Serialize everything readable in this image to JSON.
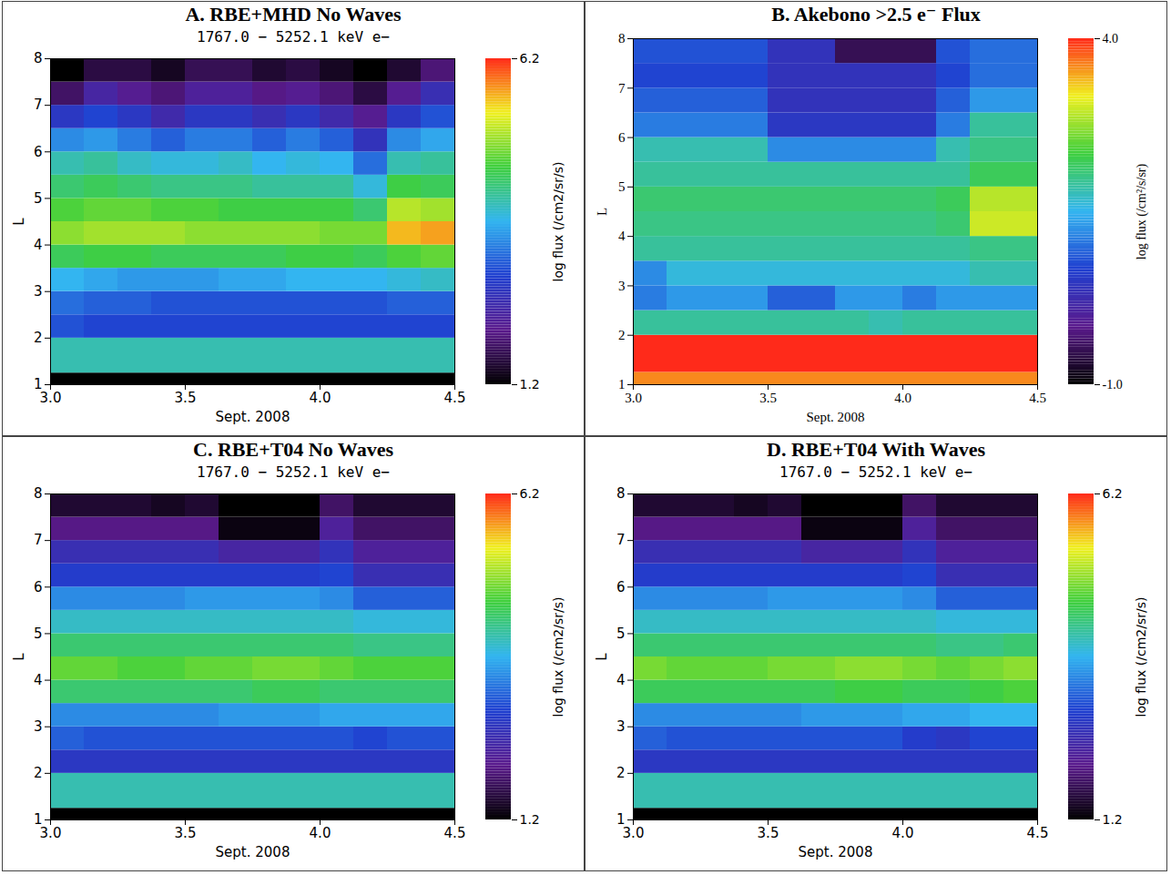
{
  "chart_data": [
    {
      "type": "heatmap",
      "title": "A. RBE+MHD No Waves",
      "subtitle": "1767.0 − 5252.1 keV e−",
      "xlabel": "Sept. 2008",
      "ylabel": "L",
      "xlim": [
        3.0,
        4.5
      ],
      "xticks": [
        {
          "value": 3.0,
          "label": "3.0"
        },
        {
          "value": 3.5,
          "label": "3.5"
        },
        {
          "value": 4.0,
          "label": "4.0"
        },
        {
          "value": 4.5,
          "label": "4.5"
        }
      ],
      "ylim": [
        1,
        8
      ],
      "yticks": [
        1,
        2,
        3,
        4,
        5,
        6,
        7,
        8
      ],
      "x_bins": [
        3.0,
        3.125,
        3.25,
        3.375,
        3.5,
        3.625,
        3.75,
        3.875,
        4.0,
        4.125,
        4.25,
        4.375,
        4.5
      ],
      "y_bins": [
        1,
        1.25,
        2,
        2.5,
        3,
        3.5,
        4,
        4.5,
        5,
        5.5,
        6,
        6.5,
        7,
        7.5,
        8
      ],
      "values": [
        [
          1.2,
          1.2,
          1.2,
          1.2,
          1.2,
          1.2,
          1.2,
          1.2,
          1.2,
          1.2,
          1.2,
          1.2
        ],
        [
          4.0,
          4.0,
          4.0,
          4.0,
          4.0,
          4.0,
          4.0,
          4.0,
          4.0,
          4.0,
          4.0,
          4.0
        ],
        [
          3.0,
          2.9,
          2.9,
          2.9,
          2.9,
          2.9,
          2.9,
          2.9,
          2.9,
          2.9,
          2.9,
          2.9
        ],
        [
          3.2,
          3.1,
          3.1,
          3.0,
          3.0,
          3.0,
          3.0,
          3.0,
          3.0,
          3.0,
          3.1,
          3.1
        ],
        [
          3.7,
          3.6,
          3.5,
          3.5,
          3.5,
          3.6,
          3.6,
          3.7,
          3.7,
          3.7,
          3.8,
          3.9
        ],
        [
          4.4,
          4.5,
          4.5,
          4.4,
          4.4,
          4.4,
          4.4,
          4.5,
          4.5,
          4.4,
          4.6,
          4.7
        ],
        [
          4.9,
          5.0,
          5.0,
          5.0,
          4.9,
          4.9,
          4.9,
          4.9,
          4.8,
          4.8,
          5.6,
          5.7
        ],
        [
          4.6,
          4.7,
          4.7,
          4.6,
          4.6,
          4.5,
          4.5,
          4.5,
          4.5,
          4.3,
          5.1,
          5.0
        ],
        [
          4.3,
          4.4,
          4.3,
          4.2,
          4.2,
          4.2,
          4.1,
          4.1,
          4.1,
          3.8,
          4.5,
          4.4
        ],
        [
          4.0,
          4.1,
          3.9,
          3.8,
          3.8,
          3.9,
          3.7,
          3.8,
          3.7,
          3.2,
          4.0,
          4.1
        ],
        [
          3.4,
          3.5,
          3.3,
          3.1,
          3.3,
          3.3,
          3.1,
          3.3,
          3.1,
          2.6,
          3.4,
          3.6
        ],
        [
          2.7,
          2.9,
          2.7,
          2.4,
          2.7,
          2.7,
          2.5,
          2.7,
          2.4,
          2.1,
          2.7,
          3.0
        ],
        [
          1.8,
          2.3,
          2.1,
          1.9,
          2.2,
          2.2,
          2.0,
          2.1,
          1.9,
          1.6,
          2.1,
          2.5
        ],
        [
          1.2,
          1.6,
          1.6,
          1.4,
          1.7,
          1.7,
          1.5,
          1.6,
          1.4,
          1.2,
          1.5,
          1.9
        ]
      ],
      "colorbar_label": "log flux (/cm2/sr/s)",
      "colorbar_lim": [
        1.2,
        6.2
      ],
      "colorbar_ticks": [
        1.2,
        6.2
      ]
    },
    {
      "type": "heatmap",
      "title": "B. Akebono >2.5 e⁻ Flux",
      "xlabel": "Sept. 2008",
      "ylabel": "L",
      "xlim": [
        3.0,
        4.5
      ],
      "xticks": [
        {
          "value": 3.0,
          "label": "3.0"
        },
        {
          "value": 3.5,
          "label": "3.5"
        },
        {
          "value": 4.0,
          "label": "4.0"
        },
        {
          "value": 4.5,
          "label": "4.5"
        }
      ],
      "ylim": [
        1,
        8
      ],
      "yticks": [
        1,
        2,
        3,
        4,
        5,
        6,
        7,
        8
      ],
      "x_bins": [
        3.0,
        3.125,
        3.25,
        3.375,
        3.5,
        3.625,
        3.75,
        3.875,
        4.0,
        4.125,
        4.25,
        4.375,
        4.5
      ],
      "y_bins": [
        1,
        1.25,
        2,
        2.5,
        3,
        3.5,
        4,
        4.5,
        5,
        5.5,
        6,
        6.5,
        7,
        7.5,
        8
      ],
      "values": [
        [
          3.6,
          3.6,
          3.6,
          3.6,
          3.6,
          3.6,
          3.6,
          3.6,
          3.6,
          3.6,
          3.6,
          3.6
        ],
        [
          4.0,
          4.0,
          4.0,
          4.0,
          4.0,
          4.0,
          4.0,
          4.0,
          4.0,
          4.0,
          4.0,
          4.0
        ],
        [
          1.9,
          1.9,
          1.9,
          1.9,
          1.9,
          1.9,
          1.9,
          1.8,
          1.9,
          1.9,
          1.9,
          1.9
        ],
        [
          1.1,
          1.3,
          1.3,
          1.3,
          0.9,
          0.9,
          1.3,
          1.3,
          1.1,
          1.3,
          1.3,
          1.3
        ],
        [
          1.2,
          1.6,
          1.6,
          1.6,
          1.6,
          1.6,
          1.6,
          1.6,
          1.6,
          1.6,
          1.8,
          1.8
        ],
        [
          1.9,
          1.9,
          1.9,
          1.9,
          1.9,
          1.9,
          1.9,
          1.9,
          1.9,
          1.9,
          2.0,
          2.0
        ],
        [
          2.0,
          2.0,
          2.0,
          2.0,
          2.0,
          2.0,
          2.0,
          2.0,
          2.0,
          2.1,
          3.0,
          3.0
        ],
        [
          2.1,
          2.1,
          2.1,
          2.1,
          2.1,
          2.1,
          2.1,
          2.1,
          2.1,
          2.2,
          2.9,
          2.9
        ],
        [
          1.9,
          1.9,
          1.9,
          1.9,
          1.9,
          1.9,
          1.9,
          1.9,
          1.9,
          1.9,
          2.2,
          2.2
        ],
        [
          1.8,
          1.8,
          1.8,
          1.8,
          1.2,
          1.2,
          1.2,
          1.2,
          1.2,
          1.8,
          2.0,
          2.0
        ],
        [
          1.1,
          1.1,
          1.1,
          1.1,
          0.5,
          0.5,
          0.5,
          0.5,
          0.5,
          1.1,
          1.9,
          1.9
        ],
        [
          0.9,
          0.9,
          0.9,
          0.9,
          0.4,
          0.4,
          0.4,
          0.4,
          0.4,
          0.9,
          1.3,
          1.3
        ],
        [
          0.7,
          0.7,
          0.7,
          0.7,
          0.4,
          0.4,
          0.4,
          0.4,
          0.4,
          0.7,
          1.0,
          1.0
        ],
        [
          0.8,
          0.8,
          0.8,
          0.8,
          0.4,
          0.4,
          -0.5,
          -0.5,
          -0.5,
          0.8,
          1.0,
          1.0
        ]
      ],
      "colorbar_label": "log flux (/cm²/s/sr)",
      "colorbar_lim": [
        -1.0,
        4.0
      ],
      "colorbar_ticks": [
        {
          "value": -1.0,
          "label": "-1.0"
        },
        {
          "value": 4.0,
          "label": "4.0"
        }
      ]
    },
    {
      "type": "heatmap",
      "title": "C. RBE+T04 No Waves",
      "subtitle": "1767.0 − 5252.1 keV e−",
      "xlabel": "Sept. 2008",
      "ylabel": "L",
      "xlim": [
        3.0,
        4.5
      ],
      "xticks": [
        {
          "value": 3.0,
          "label": "3.0"
        },
        {
          "value": 3.5,
          "label": "3.5"
        },
        {
          "value": 4.0,
          "label": "4.0"
        },
        {
          "value": 4.5,
          "label": "4.5"
        }
      ],
      "ylim": [
        1,
        8
      ],
      "yticks": [
        1,
        2,
        3,
        4,
        5,
        6,
        7,
        8
      ],
      "x_bins": [
        3.0,
        3.125,
        3.25,
        3.375,
        3.5,
        3.625,
        3.75,
        3.875,
        4.0,
        4.125,
        4.25,
        4.375,
        4.5
      ],
      "y_bins": [
        1,
        1.25,
        2,
        2.5,
        3,
        3.5,
        4,
        4.5,
        5,
        5.5,
        6,
        6.5,
        7,
        7.5,
        8
      ],
      "values": [
        [
          1.2,
          1.2,
          1.2,
          1.2,
          1.2,
          1.2,
          1.2,
          1.2,
          1.2,
          1.2,
          1.2,
          1.2
        ],
        [
          4.0,
          4.0,
          4.0,
          4.0,
          4.0,
          4.0,
          4.0,
          4.0,
          4.0,
          4.0,
          4.0,
          4.0
        ],
        [
          2.7,
          2.7,
          2.7,
          2.7,
          2.7,
          2.7,
          2.7,
          2.7,
          2.7,
          2.7,
          2.7,
          2.7
        ],
        [
          3.1,
          3.0,
          3.0,
          3.0,
          3.0,
          3.0,
          3.0,
          3.0,
          3.0,
          2.9,
          3.0,
          3.0
        ],
        [
          3.4,
          3.4,
          3.4,
          3.4,
          3.4,
          3.5,
          3.5,
          3.5,
          3.6,
          3.6,
          3.6,
          3.6
        ],
        [
          4.3,
          4.3,
          4.3,
          4.3,
          4.3,
          4.3,
          4.4,
          4.4,
          4.3,
          4.3,
          4.3,
          4.3
        ],
        [
          4.7,
          4.7,
          4.6,
          4.6,
          4.7,
          4.7,
          4.8,
          4.8,
          4.7,
          4.6,
          4.6,
          4.6
        ],
        [
          4.3,
          4.3,
          4.3,
          4.3,
          4.3,
          4.3,
          4.3,
          4.3,
          4.3,
          4.2,
          4.2,
          4.2
        ],
        [
          3.9,
          3.9,
          3.9,
          3.9,
          3.9,
          3.9,
          3.9,
          3.9,
          3.9,
          3.8,
          3.8,
          3.8
        ],
        [
          3.4,
          3.4,
          3.4,
          3.4,
          3.5,
          3.5,
          3.5,
          3.5,
          3.4,
          3.1,
          3.1,
          3.1
        ],
        [
          2.8,
          2.8,
          2.8,
          2.8,
          2.8,
          2.8,
          2.8,
          2.8,
          2.9,
          2.5,
          2.5,
          2.5
        ],
        [
          2.5,
          2.5,
          2.5,
          2.5,
          2.5,
          2.3,
          2.3,
          2.3,
          2.6,
          2.2,
          2.2,
          2.2
        ],
        [
          2.0,
          2.0,
          2.0,
          2.0,
          2.0,
          1.3,
          1.3,
          1.3,
          2.2,
          1.8,
          1.8,
          1.8
        ],
        [
          1.5,
          1.5,
          1.5,
          1.4,
          1.5,
          1.2,
          1.2,
          1.2,
          1.8,
          1.5,
          1.5,
          1.5
        ]
      ],
      "colorbar_label": "log flux (/cm2/sr/s)",
      "colorbar_lim": [
        1.2,
        6.2
      ],
      "colorbar_ticks": [
        1.2,
        6.2
      ]
    },
    {
      "type": "heatmap",
      "title": "D. RBE+T04 With Waves",
      "subtitle": "1767.0 − 5252.1 keV e−",
      "xlabel": "Sept. 2008",
      "ylabel": "L",
      "xlim": [
        3.0,
        4.5
      ],
      "xticks": [
        {
          "value": 3.0,
          "label": "3.0"
        },
        {
          "value": 3.5,
          "label": "3.5"
        },
        {
          "value": 4.0,
          "label": "4.0"
        },
        {
          "value": 4.5,
          "label": "4.5"
        }
      ],
      "ylim": [
        1,
        8
      ],
      "yticks": [
        1,
        2,
        3,
        4,
        5,
        6,
        7,
        8
      ],
      "x_bins": [
        3.0,
        3.125,
        3.25,
        3.375,
        3.5,
        3.625,
        3.75,
        3.875,
        4.0,
        4.125,
        4.25,
        4.375,
        4.5
      ],
      "y_bins": [
        1,
        1.25,
        2,
        2.5,
        3,
        3.5,
        4,
        4.5,
        5,
        5.5,
        6,
        6.5,
        7,
        7.5,
        8
      ],
      "values": [
        [
          1.2,
          1.2,
          1.2,
          1.2,
          1.2,
          1.2,
          1.2,
          1.2,
          1.2,
          1.2,
          1.2,
          1.2
        ],
        [
          4.0,
          4.0,
          4.0,
          4.0,
          4.0,
          4.0,
          4.0,
          4.0,
          4.0,
          4.0,
          4.0,
          4.0
        ],
        [
          2.7,
          2.7,
          2.7,
          2.7,
          2.7,
          2.7,
          2.7,
          2.7,
          2.7,
          2.7,
          2.7,
          2.7
        ],
        [
          3.1,
          3.0,
          3.0,
          3.0,
          3.0,
          3.0,
          3.0,
          3.0,
          2.8,
          2.7,
          2.9,
          2.9
        ],
        [
          3.4,
          3.4,
          3.4,
          3.4,
          3.4,
          3.5,
          3.5,
          3.5,
          3.6,
          3.6,
          3.7,
          3.7
        ],
        [
          4.4,
          4.4,
          4.4,
          4.4,
          4.4,
          4.4,
          4.5,
          4.5,
          4.4,
          4.4,
          4.5,
          4.6
        ],
        [
          4.8,
          4.7,
          4.7,
          4.7,
          4.8,
          4.8,
          4.9,
          4.9,
          4.8,
          4.7,
          4.8,
          4.9
        ],
        [
          4.3,
          4.3,
          4.3,
          4.3,
          4.3,
          4.3,
          4.3,
          4.3,
          4.3,
          4.2,
          4.2,
          4.3
        ],
        [
          3.9,
          3.9,
          3.9,
          3.9,
          3.9,
          3.9,
          3.9,
          3.9,
          3.9,
          3.8,
          3.8,
          3.8
        ],
        [
          3.4,
          3.4,
          3.4,
          3.4,
          3.5,
          3.5,
          3.5,
          3.5,
          3.4,
          3.1,
          3.1,
          3.1
        ],
        [
          2.8,
          2.8,
          2.8,
          2.8,
          2.8,
          2.8,
          2.8,
          2.8,
          2.9,
          2.5,
          2.5,
          2.5
        ],
        [
          2.5,
          2.5,
          2.5,
          2.5,
          2.5,
          2.3,
          2.3,
          2.3,
          2.6,
          2.2,
          2.2,
          2.2
        ],
        [
          2.0,
          2.0,
          2.0,
          2.0,
          2.0,
          1.3,
          1.3,
          1.3,
          2.2,
          1.8,
          1.8,
          1.8
        ],
        [
          1.5,
          1.5,
          1.5,
          1.4,
          1.5,
          1.2,
          1.2,
          1.2,
          1.8,
          1.5,
          1.5,
          1.5
        ]
      ],
      "colorbar_label": "log flux (/cm2/sr/s)",
      "colorbar_lim": [
        1.2,
        6.2
      ],
      "colorbar_ticks": [
        1.2,
        6.2
      ]
    }
  ]
}
